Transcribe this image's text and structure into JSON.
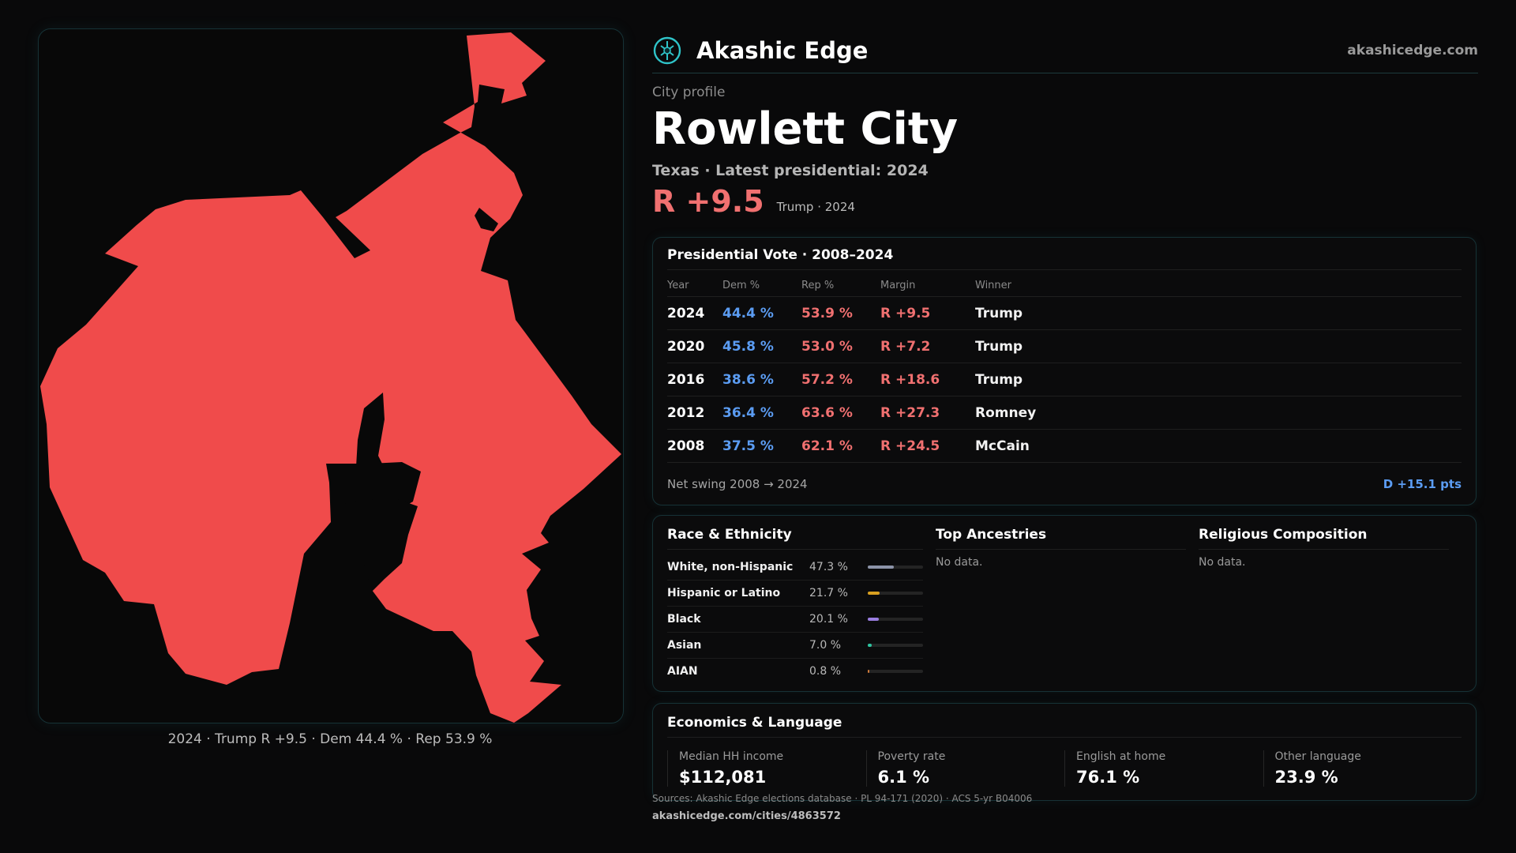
{
  "brand": {
    "name": "Akashic Edge",
    "site": "akashicedge.com",
    "logo": "akashic-edge-logo-icon"
  },
  "profile": {
    "kicker": "City profile",
    "title": "Rowlett City",
    "subtitle": "Texas · Latest presidential: 2024",
    "margin": "R +9.5",
    "margin_note": "Trump · 2024"
  },
  "map": {
    "caption": "2024 · Trump R +9.5 · Dem 44.4 % · Rep 53.9 %",
    "fill_color": "#f04b4b",
    "background": "#080808"
  },
  "votes": {
    "title": "Presidential Vote · 2008–2024",
    "headers": [
      "Year",
      "Dem %",
      "Rep %",
      "Margin",
      "Winner"
    ],
    "rows": [
      {
        "year": "2024",
        "dem": "44.4 %",
        "rep": "53.9 %",
        "margin": "R +9.5",
        "winner": "Trump"
      },
      {
        "year": "2020",
        "dem": "45.8 %",
        "rep": "53.0 %",
        "margin": "R +7.2",
        "winner": "Trump"
      },
      {
        "year": "2016",
        "dem": "38.6 %",
        "rep": "57.2 %",
        "margin": "R +18.6",
        "winner": "Trump"
      },
      {
        "year": "2012",
        "dem": "36.4 %",
        "rep": "63.6 %",
        "margin": "R +27.3",
        "winner": "Romney"
      },
      {
        "year": "2008",
        "dem": "37.5 %",
        "rep": "62.1 %",
        "margin": "R +24.5",
        "winner": "McCain"
      }
    ],
    "swing_label": "Net swing 2008 → 2024",
    "swing_value": "D +15.1 pts"
  },
  "race": {
    "title": "Race & Ethnicity",
    "items": [
      {
        "label": "White, non-Hispanic",
        "pct": "47.3 %",
        "value": 47.3,
        "color": "#8c93a8"
      },
      {
        "label": "Hispanic or Latino",
        "pct": "21.7 %",
        "value": 21.7,
        "color": "#d9a020"
      },
      {
        "label": "Black",
        "pct": "20.1 %",
        "value": 20.1,
        "color": "#9a7ee0"
      },
      {
        "label": "Asian",
        "pct": "7.0 %",
        "value": 7.0,
        "color": "#2ec4a0"
      },
      {
        "label": "AIAN",
        "pct": "0.8 %",
        "value": 0.8,
        "color": "#d07a3a"
      }
    ]
  },
  "ancestries": {
    "title": "Top Ancestries",
    "empty": "No data."
  },
  "religion": {
    "title": "Religious Composition",
    "empty": "No data."
  },
  "economics": {
    "title": "Economics & Language",
    "items": [
      {
        "label": "Median HH income",
        "value": "$112,081"
      },
      {
        "label": "Poverty rate",
        "value": "6.1 %"
      },
      {
        "label": "English at home",
        "value": "76.1 %"
      },
      {
        "label": "Other language",
        "value": "23.9 %"
      }
    ]
  },
  "footer": {
    "sources": "Sources: Akashic Edge elections database · PL 94-171 (2020) · ACS 5-yr B04006",
    "url": "akashicedge.com/cities/4863572"
  }
}
